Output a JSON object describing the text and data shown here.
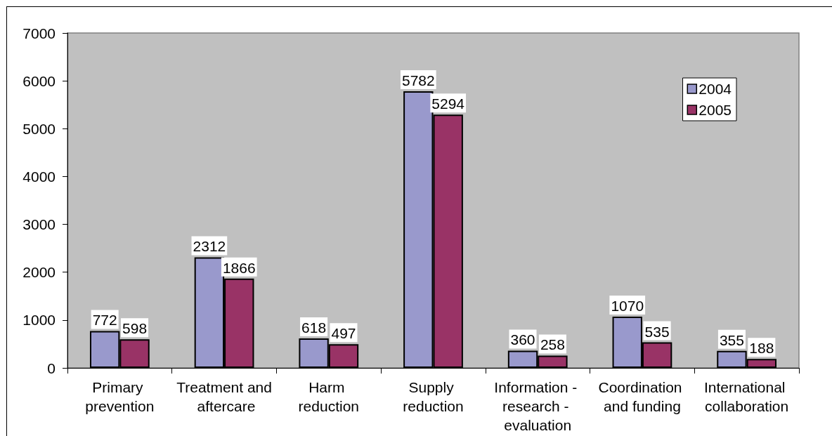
{
  "chart_data": {
    "type": "bar",
    "categories": [
      "Primary prevention",
      "Treatment and aftercare",
      "Harm reduction",
      "Supply reduction",
      "Information - research - evaluation",
      "Coordination and funding",
      "International collaboration"
    ],
    "series": [
      {
        "name": "2004",
        "color": "#9999cc",
        "values": [
          772,
          2312,
          618,
          5782,
          360,
          1070,
          355
        ]
      },
      {
        "name": "2005",
        "color": "#993366",
        "values": [
          598,
          1866,
          497,
          5294,
          258,
          535,
          188
        ]
      }
    ],
    "ylim": [
      0,
      7000
    ],
    "yticks": [
      0,
      1000,
      2000,
      3000,
      4000,
      5000,
      6000,
      7000
    ],
    "data_labels": true,
    "legend": "top right"
  }
}
